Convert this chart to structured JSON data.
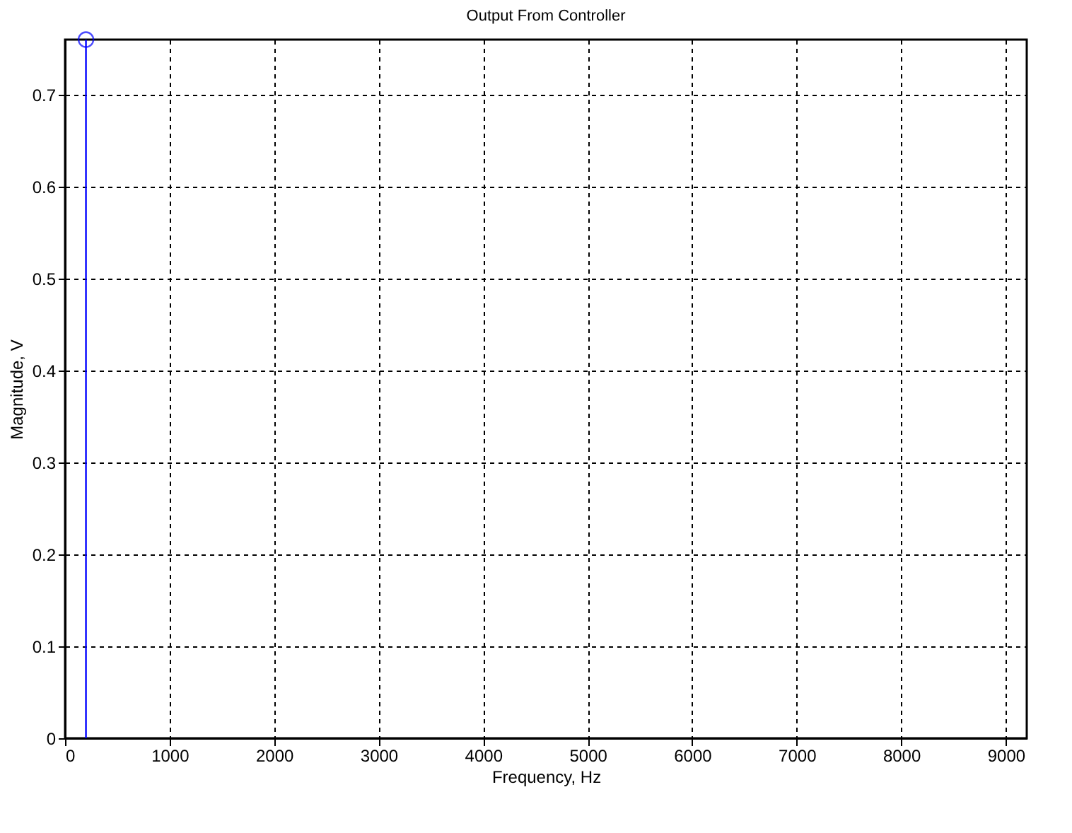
{
  "chart_data": {
    "type": "lollipop",
    "title": "Output From Controller",
    "xlabel": "Frequency, Hz",
    "ylabel": "Magnitude, V",
    "x": [
      200
    ],
    "series": [
      {
        "color": "#0000ff",
        "values": [
          0.76
        ]
      }
    ],
    "xlim": [
      0,
      9200
    ],
    "xticks": [
      0,
      1000,
      2000,
      3000,
      4000,
      5000,
      6000,
      7000,
      8000,
      9000
    ],
    "ylim": [
      0,
      0.76
    ],
    "yticks": [
      0,
      0.1,
      0.2,
      0.3,
      0.4,
      0.5,
      0.6,
      0.7
    ],
    "grid": true,
    "marker": "circle"
  }
}
